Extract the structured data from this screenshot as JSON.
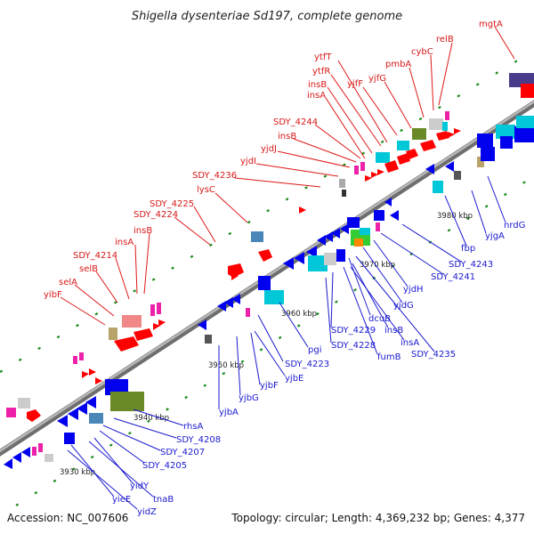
{
  "title": "Shigella dysenteriae Sd197, complete genome",
  "footer": {
    "accession": "Accession: NC_007606",
    "summary": "Topology: circular; Length: 4,369,232 bp; Genes: 4,377"
  },
  "kbp_ticks": [
    "3930 kbp",
    "3940 kbp",
    "3950 kbp",
    "3960 kbp",
    "3970 kbp",
    "3980 kbp"
  ],
  "red_labels": [
    "mgtA",
    "relB",
    "cybC",
    "pmbA",
    "yjfG",
    "yjfF",
    "ytfT",
    "ytfR",
    "insB",
    "insA",
    "SDY_4244",
    "insB",
    "yjdJ",
    "yjdI",
    "SDY_4236",
    "lysC",
    "SDY_4225",
    "SDY_4224",
    "insB",
    "insA",
    "SDY_4214",
    "selB",
    "selA",
    "yibF"
  ],
  "blue_labels": [
    "nrdG",
    "yjgA",
    "fbp",
    "SDY_4243",
    "SDY_4241",
    "yjdH",
    "yjdG",
    "dcuB",
    "insB",
    "insA",
    "SDY_4235",
    "SDY_4229",
    "fumB",
    "SDY_4228",
    "pgi",
    "SDY_4223",
    "yjbE",
    "yjbF",
    "yjbG",
    "yjbA",
    "rhsA",
    "SDY_4208",
    "SDY_4207",
    "SDY_4205",
    "yidY",
    "tnaB",
    "yieE",
    "yidZ"
  ],
  "colors": {
    "forward_gene": "#ff0000",
    "reverse_gene": "#0000ff",
    "axis": "#888888",
    "gc_dots": "#1a8a1a"
  }
}
